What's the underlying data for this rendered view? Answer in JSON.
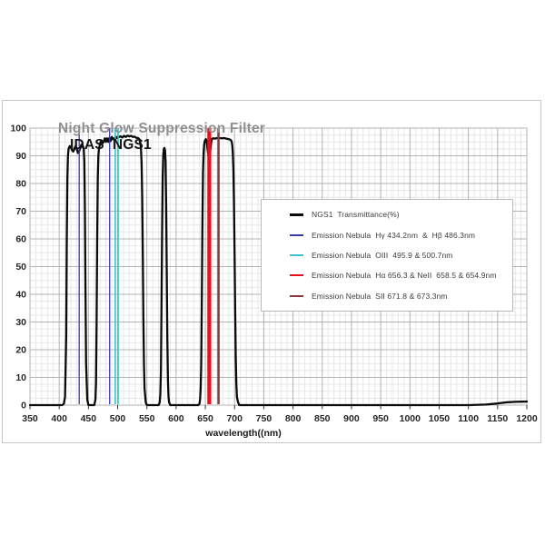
{
  "title": {
    "part1": "Night Glow Suppression Filter",
    "part2": "IDAS  NGS1"
  },
  "legend": {
    "items": [
      {
        "label": "NGS1  Transmittance(%)",
        "color": "#0a0a0a",
        "thickness": 3
      },
      {
        "label": "Emission Nebula  Hγ 434.2nm  &  Hβ 486.3nm",
        "color": "#3a3aad",
        "thickness": 2
      },
      {
        "label": "Emission Nebula  OIII  495.9 & 500.7nm",
        "color": "#35c4c8",
        "thickness": 2
      },
      {
        "label": "Emission Nebula  Hα 656.3 & NeII  658.5 & 654.9nm",
        "color": "#e8101c",
        "thickness": 2
      },
      {
        "label": "Emission Nebula  SII 671.8 & 673.3nm",
        "color": "#8b3a3a",
        "thickness": 2
      }
    ]
  },
  "chart_data": {
    "type": "line",
    "title": "Night Glow Suppression Filter IDAS NGS1",
    "xlabel": "wavelength((nm)",
    "ylabel": "",
    "xlim": [
      350,
      1200
    ],
    "ylim": [
      0,
      100
    ],
    "x_tick_step": 50,
    "y_tick_step": 10,
    "x_minor_step": 10,
    "y_minor_step": 2.5,
    "grid": "on",
    "legend_position": "center-right",
    "series": [
      {
        "name": "NGS1 Transmittance(%)",
        "color": "#0a0a0a",
        "points": [
          [
            350,
            0
          ],
          [
            405,
            0
          ],
          [
            408,
            0.5
          ],
          [
            410,
            3
          ],
          [
            412,
            25
          ],
          [
            413,
            60
          ],
          [
            414,
            82
          ],
          [
            415,
            90
          ],
          [
            416,
            92.5
          ],
          [
            418,
            93.5
          ],
          [
            420,
            93
          ],
          [
            422,
            92
          ],
          [
            424,
            91.5
          ],
          [
            426,
            92.5
          ],
          [
            428,
            93.5
          ],
          [
            430,
            92.5
          ],
          [
            432,
            91
          ],
          [
            434,
            91.5
          ],
          [
            436,
            93
          ],
          [
            438,
            94
          ],
          [
            440,
            93.8
          ],
          [
            442,
            92.5
          ],
          [
            443,
            88
          ],
          [
            444,
            70
          ],
          [
            445,
            40
          ],
          [
            446,
            15
          ],
          [
            448,
            2
          ],
          [
            450,
            0
          ],
          [
            460,
            0
          ],
          [
            462,
            2
          ],
          [
            463,
            8
          ],
          [
            464,
            30
          ],
          [
            465,
            60
          ],
          [
            466,
            82
          ],
          [
            467,
            90
          ],
          [
            468,
            92.5
          ],
          [
            470,
            94.5
          ],
          [
            472,
            95.5
          ],
          [
            474,
            94.5
          ],
          [
            476,
            95
          ],
          [
            478,
            96.3
          ],
          [
            480,
            95
          ],
          [
            482,
            96.3
          ],
          [
            484,
            95
          ],
          [
            486,
            96.5
          ],
          [
            488,
            95.3
          ],
          [
            490,
            96.8
          ],
          [
            492,
            96
          ],
          [
            494,
            96.3
          ],
          [
            496,
            96
          ],
          [
            498,
            96.8
          ],
          [
            500,
            96.3
          ],
          [
            502,
            96.8
          ],
          [
            505,
            97
          ],
          [
            508,
            96.6
          ],
          [
            511,
            97.2
          ],
          [
            514,
            96.8
          ],
          [
            517,
            97.3
          ],
          [
            520,
            97
          ],
          [
            523,
            97.2
          ],
          [
            526,
            96.8
          ],
          [
            529,
            96.9
          ],
          [
            532,
            96.5
          ],
          [
            535,
            96.4
          ],
          [
            537,
            96
          ],
          [
            539,
            94.5
          ],
          [
            540,
            92
          ],
          [
            541,
            87
          ],
          [
            542,
            75
          ],
          [
            543,
            55
          ],
          [
            544,
            32
          ],
          [
            545,
            15
          ],
          [
            546,
            6
          ],
          [
            548,
            1
          ],
          [
            550,
            0
          ],
          [
            570,
            0
          ],
          [
            572,
            1
          ],
          [
            573,
            4
          ],
          [
            574,
            12
          ],
          [
            575,
            35
          ],
          [
            576,
            62
          ],
          [
            577,
            82
          ],
          [
            578,
            90
          ],
          [
            579,
            92.5
          ],
          [
            580,
            92.8
          ],
          [
            581,
            92
          ],
          [
            582,
            88
          ],
          [
            583,
            72
          ],
          [
            584,
            48
          ],
          [
            585,
            24
          ],
          [
            586,
            9
          ],
          [
            587,
            3
          ],
          [
            588,
            1
          ],
          [
            590,
            0
          ],
          [
            638,
            0
          ],
          [
            640,
            0.5
          ],
          [
            641,
            2
          ],
          [
            642,
            6
          ],
          [
            643,
            15
          ],
          [
            644,
            38
          ],
          [
            645,
            65
          ],
          [
            646,
            84
          ],
          [
            647,
            91
          ],
          [
            648,
            94
          ],
          [
            649,
            95.3
          ],
          [
            650,
            95.8
          ],
          [
            651,
            96
          ],
          [
            652,
            95.5
          ],
          [
            653,
            94
          ],
          [
            654,
            92
          ],
          [
            655,
            90.5
          ],
          [
            656,
            89
          ],
          [
            657,
            89.5
          ],
          [
            658,
            91
          ],
          [
            659,
            93
          ],
          [
            660,
            94.8
          ],
          [
            661,
            95.8
          ],
          [
            662,
            96.2
          ],
          [
            664,
            96.3
          ],
          [
            667,
            96.2
          ],
          [
            670,
            96.4
          ],
          [
            674,
            96.4
          ],
          [
            678,
            96.3
          ],
          [
            682,
            96.4
          ],
          [
            686,
            96.2
          ],
          [
            690,
            96
          ],
          [
            693,
            95.8
          ],
          [
            695,
            95.2
          ],
          [
            696,
            94
          ],
          [
            697,
            91
          ],
          [
            698,
            85
          ],
          [
            699,
            73
          ],
          [
            700,
            55
          ],
          [
            701,
            35
          ],
          [
            702,
            18
          ],
          [
            703,
            8
          ],
          [
            704,
            3
          ],
          [
            706,
            1
          ],
          [
            708,
            0
          ],
          [
            1100,
            0
          ],
          [
            1130,
            0.2
          ],
          [
            1150,
            0.6
          ],
          [
            1165,
            1
          ],
          [
            1180,
            1.2
          ],
          [
            1200,
            1.3
          ]
        ]
      }
    ],
    "emission_lines": [
      {
        "name": "H-gamma & H-beta",
        "color": "#3a3aad",
        "width": 1.3,
        "wavelengths": [
          434.2,
          486.3
        ]
      },
      {
        "name": "OIII",
        "color": "#35c4c8",
        "width": 1.6,
        "wavelengths": [
          495.9,
          500.7
        ]
      },
      {
        "name": "H-alpha & NeII",
        "color": "#e8101c",
        "width": 1.9,
        "wavelengths": [
          654.9,
          656.3,
          658.5
        ]
      },
      {
        "name": "SII",
        "color": "#8b3a3a",
        "width": 1.6,
        "wavelengths": [
          671.8,
          673.3
        ]
      }
    ]
  },
  "style": {
    "minor_grid_color": "#e7e7e7",
    "major_grid_color": "#b3b3b3",
    "plot_border_color": "#b3b3b3",
    "tick_color": "#333333",
    "tick_label_color": "#262626",
    "axis_title_color": "#1a1a1a"
  }
}
